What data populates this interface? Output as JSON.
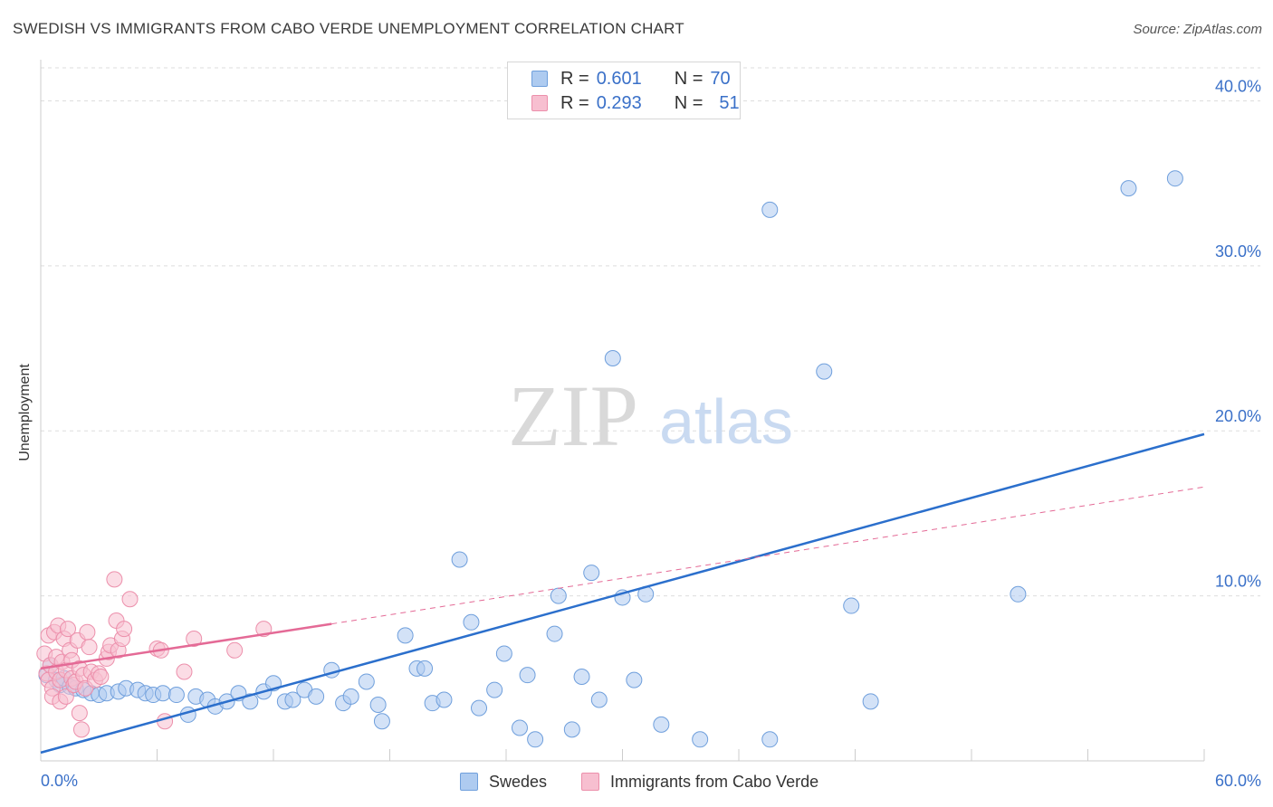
{
  "header": {
    "title": "SWEDISH VS IMMIGRANTS FROM CABO VERDE UNEMPLOYMENT CORRELATION CHART",
    "source": "Source: ZipAtlas.com"
  },
  "watermark": {
    "zip": "ZIP",
    "atlas": "atlas"
  },
  "legend_top": {
    "r_label": "R =",
    "n_label": "N =",
    "rows": [
      {
        "r": "0.601",
        "n": "70"
      },
      {
        "r": "0.293",
        "n": "51"
      }
    ]
  },
  "colors": {
    "swedes_fill": "#aecbf0",
    "swedes_stroke": "#6f9fdc",
    "swedes_line": "#2b6fcc",
    "cabo_fill": "#f7bfd0",
    "cabo_stroke": "#ec8fab",
    "cabo_line": "#e46a96",
    "tick_label": "#3a70c8",
    "grid": "#dddddd"
  },
  "chart_data": {
    "type": "scatter",
    "title": "SWEDISH VS IMMIGRANTS FROM CABO VERDE UNEMPLOYMENT CORRELATION CHART",
    "xlabel": "",
    "ylabel": "Unemployment",
    "xlim": [
      0,
      60
    ],
    "ylim": [
      0,
      42
    ],
    "x_tick_labels": [
      "0.0%",
      "60.0%"
    ],
    "y_ticks": [
      10,
      20,
      30,
      40
    ],
    "y_tick_labels": [
      "10.0%",
      "20.0%",
      "30.0%",
      "40.0%"
    ],
    "grid": "horizontal dashed",
    "legend_position": "bottom-center",
    "series": [
      {
        "name": "Swedes",
        "r": 0.601,
        "n": 70,
        "trend": {
          "x": [
            0,
            60
          ],
          "y": [
            0.5,
            19.8
          ]
        },
        "points": [
          [
            0.3,
            5.2
          ],
          [
            0.5,
            5.8
          ],
          [
            0.8,
            4.9
          ],
          [
            1.0,
            4.6
          ],
          [
            1.2,
            5.0
          ],
          [
            1.5,
            4.5
          ],
          [
            1.8,
            4.4
          ],
          [
            2.2,
            4.3
          ],
          [
            2.6,
            4.1
          ],
          [
            3.0,
            4.0
          ],
          [
            3.4,
            4.1
          ],
          [
            4.0,
            4.2
          ],
          [
            4.4,
            4.4
          ],
          [
            5.0,
            4.3
          ],
          [
            5.4,
            4.1
          ],
          [
            5.8,
            4.0
          ],
          [
            6.3,
            4.1
          ],
          [
            7.0,
            4.0
          ],
          [
            7.6,
            2.8
          ],
          [
            8.0,
            3.9
          ],
          [
            8.6,
            3.7
          ],
          [
            9.0,
            3.3
          ],
          [
            9.6,
            3.6
          ],
          [
            10.2,
            4.1
          ],
          [
            10.8,
            3.6
          ],
          [
            11.5,
            4.2
          ],
          [
            12.0,
            4.7
          ],
          [
            12.6,
            3.6
          ],
          [
            13.0,
            3.7
          ],
          [
            13.6,
            4.3
          ],
          [
            14.2,
            3.9
          ],
          [
            15.0,
            5.5
          ],
          [
            15.6,
            3.5
          ],
          [
            16.0,
            3.9
          ],
          [
            16.8,
            4.8
          ],
          [
            17.4,
            3.4
          ],
          [
            17.6,
            2.4
          ],
          [
            18.8,
            7.6
          ],
          [
            19.4,
            5.6
          ],
          [
            19.8,
            5.6
          ],
          [
            20.2,
            3.5
          ],
          [
            20.8,
            3.7
          ],
          [
            21.6,
            12.2
          ],
          [
            22.2,
            8.4
          ],
          [
            22.6,
            3.2
          ],
          [
            23.4,
            4.3
          ],
          [
            23.9,
            6.5
          ],
          [
            24.7,
            2.0
          ],
          [
            25.1,
            5.2
          ],
          [
            25.5,
            1.3
          ],
          [
            26.7,
            10.0
          ],
          [
            26.5,
            7.7
          ],
          [
            27.4,
            1.9
          ],
          [
            27.9,
            5.1
          ],
          [
            28.4,
            11.4
          ],
          [
            28.8,
            3.7
          ],
          [
            29.5,
            24.4
          ],
          [
            30.0,
            9.9
          ],
          [
            30.6,
            4.9
          ],
          [
            31.2,
            10.1
          ],
          [
            32.0,
            2.2
          ],
          [
            34.0,
            1.3
          ],
          [
            37.6,
            33.4
          ],
          [
            37.6,
            1.3
          ],
          [
            40.4,
            23.6
          ],
          [
            41.8,
            9.4
          ],
          [
            42.8,
            3.6
          ],
          [
            50.4,
            10.1
          ],
          [
            56.1,
            34.7
          ],
          [
            58.5,
            35.3
          ]
        ]
      },
      {
        "name": "Immigrants from Cabo Verde",
        "r": 0.293,
        "n": 51,
        "trend": {
          "x": [
            0,
            15
          ],
          "y": [
            5.6,
            8.3
          ]
        },
        "trend_extension": {
          "x": [
            15,
            60
          ],
          "y": [
            8.3,
            16.6
          ]
        },
        "points": [
          [
            0.2,
            6.5
          ],
          [
            0.3,
            5.3
          ],
          [
            0.4,
            4.9
          ],
          [
            0.4,
            7.6
          ],
          [
            0.5,
            5.8
          ],
          [
            0.6,
            4.4
          ],
          [
            0.6,
            3.9
          ],
          [
            0.7,
            7.8
          ],
          [
            0.8,
            5.4
          ],
          [
            0.8,
            6.3
          ],
          [
            0.9,
            8.2
          ],
          [
            1.0,
            3.6
          ],
          [
            1.0,
            4.9
          ],
          [
            1.1,
            6.0
          ],
          [
            1.2,
            7.4
          ],
          [
            1.3,
            5.5
          ],
          [
            1.3,
            3.9
          ],
          [
            1.4,
            8.0
          ],
          [
            1.5,
            6.7
          ],
          [
            1.6,
            5.0
          ],
          [
            1.6,
            6.1
          ],
          [
            1.7,
            4.6
          ],
          [
            1.8,
            4.8
          ],
          [
            1.9,
            7.3
          ],
          [
            2.0,
            5.6
          ],
          [
            2.0,
            2.9
          ],
          [
            2.1,
            1.9
          ],
          [
            2.2,
            5.2
          ],
          [
            2.3,
            4.4
          ],
          [
            2.4,
            7.8
          ],
          [
            2.5,
            6.9
          ],
          [
            2.6,
            5.4
          ],
          [
            2.8,
            4.9
          ],
          [
            3.0,
            5.3
          ],
          [
            3.1,
            5.1
          ],
          [
            3.4,
            6.2
          ],
          [
            3.5,
            6.6
          ],
          [
            3.6,
            7.0
          ],
          [
            3.8,
            11.0
          ],
          [
            3.9,
            8.5
          ],
          [
            4.0,
            6.7
          ],
          [
            4.2,
            7.4
          ],
          [
            4.3,
            8.0
          ],
          [
            4.6,
            9.8
          ],
          [
            6.0,
            6.8
          ],
          [
            6.2,
            6.7
          ],
          [
            6.4,
            2.4
          ],
          [
            7.4,
            5.4
          ],
          [
            7.9,
            7.4
          ],
          [
            10.0,
            6.7
          ],
          [
            11.5,
            8.0
          ]
        ]
      }
    ]
  },
  "bottom_legend": [
    {
      "label": "Swedes"
    },
    {
      "label": "Immigrants from Cabo Verde"
    }
  ]
}
